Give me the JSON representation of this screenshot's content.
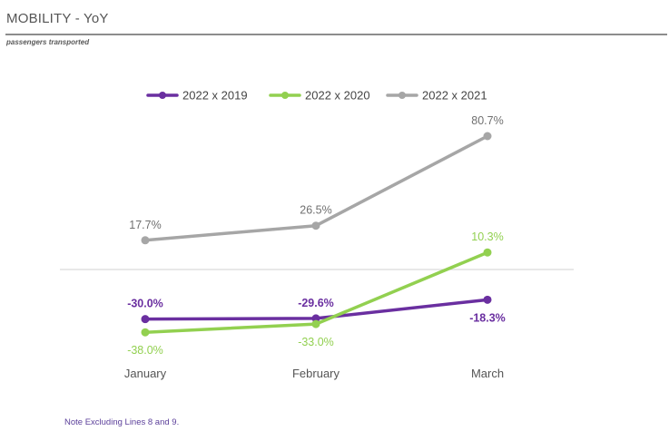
{
  "header": {
    "title": "MOBILITY - YoY",
    "subtitle": "passengers transported"
  },
  "footer": {
    "note": "Note Excluding Lines 8 and 9."
  },
  "chart_data": {
    "type": "line",
    "title": "MOBILITY - YoY",
    "subtitle": "passengers transported",
    "xlabel": "",
    "ylabel": "",
    "categories": [
      "January",
      "February",
      "March"
    ],
    "ylim": [
      -50,
      90
    ],
    "grid": false,
    "legend_position": "top",
    "zero_line": true,
    "series": [
      {
        "name": "2022 x 2019",
        "color": "#6a2fa0",
        "values": [
          -30.0,
          -29.6,
          -18.3
        ],
        "labels": [
          "-30.0%",
          "-29.6%",
          "-18.3%"
        ],
        "label_positions": [
          "above",
          "above",
          "below"
        ]
      },
      {
        "name": "2022 x 2020",
        "color": "#92d050",
        "values": [
          -38.0,
          -33.0,
          10.3
        ],
        "labels": [
          "-38.0%",
          "-33.0%",
          "10.3%"
        ],
        "label_positions": [
          "below",
          "below",
          "above"
        ]
      },
      {
        "name": "2022 x 2021",
        "color": "#a6a6a6",
        "values": [
          17.7,
          26.5,
          80.7
        ],
        "labels": [
          "17.7%",
          "26.5%",
          "80.7%"
        ],
        "label_positions": [
          "above",
          "above",
          "above"
        ]
      }
    ]
  }
}
